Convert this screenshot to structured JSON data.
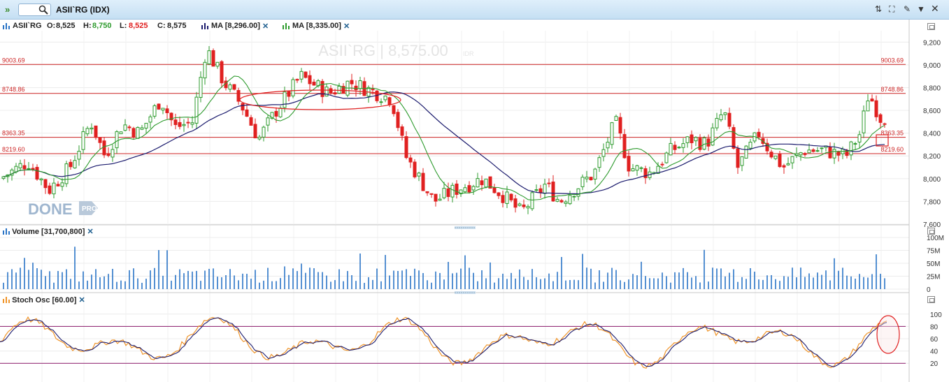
{
  "toolbar": {
    "title": "ASII`RG (IDX)"
  },
  "legend": {
    "symbol": "ASII`RG",
    "o_label": "O:",
    "o_value": "8,525",
    "h_label": "H:",
    "h_value": "8,750",
    "l_label": "L:",
    "l_value": "8,525",
    "c_label": "C:",
    "c_value": "8,575",
    "ma1": "MA [8,296.00]",
    "ma2": "MA [8,335.00]"
  },
  "watermark": "ASII`RG | 8,575.00",
  "watermark_currency": "IDR",
  "logo": {
    "text": "DONE",
    "badge": "PRO"
  },
  "price_axis": [
    "9,200",
    "9,000",
    "8,800",
    "8,600",
    "8,400",
    "8,200",
    "8,000",
    "7,800",
    "7,600"
  ],
  "levels": [
    {
      "value": 9003.69,
      "label": "9003.69"
    },
    {
      "value": 8748.86,
      "label": "8748.86"
    },
    {
      "value": 8363.35,
      "label": "8363.35"
    },
    {
      "value": 8219.6,
      "label": "8219.60"
    }
  ],
  "volume": {
    "label": "Volume [31,700,800]",
    "axis": [
      "100M",
      "75M",
      "50M",
      "25M",
      "0"
    ]
  },
  "stoch": {
    "label": "Stoch Osc [60.00]",
    "axis": [
      "100",
      "80",
      "60",
      "40",
      "20"
    ],
    "upper": 80,
    "lower": 20
  },
  "colors": {
    "up": "#2e9b2e",
    "down": "#e02020",
    "ma_short": "#2e9b2e",
    "ma_long": "#1c1c6e",
    "level": "#cc2222",
    "volume": "#2a74c6",
    "stoch_k": "#f0952a",
    "stoch_d": "#1c1c6e",
    "band": "#8b1a6b"
  },
  "chart_data": {
    "type": "candlestick",
    "price_range": [
      7600,
      9300
    ],
    "series": [
      {
        "name": "MA [8,296.00]"
      },
      {
        "name": "MA [8,335.00]"
      }
    ]
  }
}
